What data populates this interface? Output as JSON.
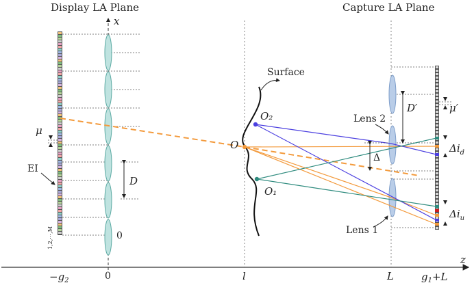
{
  "titles": {
    "display_plane": "Display LA Plane",
    "capture_plane": "Capture LA Plane"
  },
  "axis_labels": {
    "x_axis": "x",
    "z_axis": "z",
    "origin_x": "0"
  },
  "z_ticks": {
    "neg_g2": "−g₂",
    "zero": "0",
    "l": "l",
    "L": "L",
    "g1_plus_L": "g₁+L"
  },
  "labels": {
    "surface": "Surface",
    "O": "O",
    "O1": "O₁",
    "O2": "O₂",
    "lens2": "Lens 2",
    "lens1": "Lens 1",
    "EI": "EI",
    "ei_index": "1,2,⋯,M",
    "mu": "μ",
    "mu_prime": "μ′",
    "D": "D",
    "D_prime": "D′",
    "Delta": "Δ",
    "delta_i_d": "Δi_d",
    "delta_i_u": "Δi_u"
  },
  "colors": {
    "orange": "#f39a3c",
    "blue": "#4b3fe0",
    "teal": "#2e8b7e",
    "lens_fill_display": "#bfe3e0",
    "lens_fill_capture": "#b9cde8"
  }
}
